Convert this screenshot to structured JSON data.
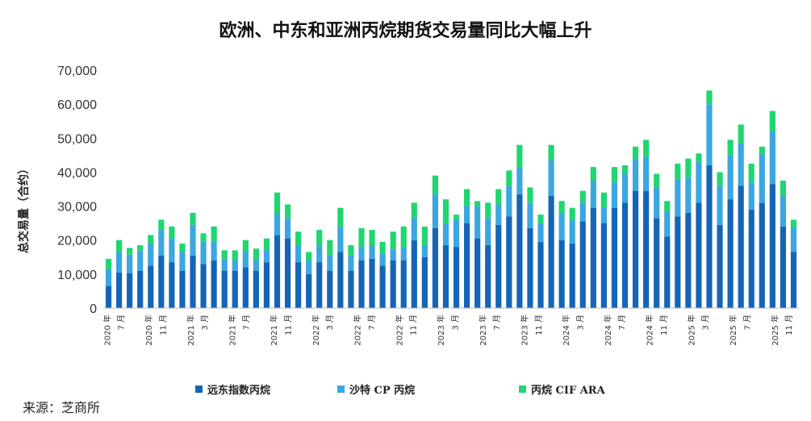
{
  "chart_data": {
    "type": "bar",
    "stacked": true,
    "title": "欧洲、中东和亚洲丙烷期货交易量同比大幅上升",
    "ylabel": "总交易量（合约）",
    "ylim": [
      0,
      70000
    ],
    "yticks": [
      "0",
      "10,000",
      "20,000",
      "30,000",
      "40,000",
      "50,000",
      "60,000",
      "70,000"
    ],
    "legend_position": "bottom",
    "grid": false,
    "x_tick_labels": [
      {
        "index": 0,
        "label": "2020 年"
      },
      {
        "index": 2,
        "label": "7 月"
      },
      {
        "index": 6,
        "label": "2020 年"
      },
      {
        "index": 8,
        "label": "11 月"
      },
      {
        "index": 12,
        "label": "2021 年"
      },
      {
        "index": 14,
        "label": "3 月"
      },
      {
        "index": 18,
        "label": "2021 年"
      },
      {
        "index": 20,
        "label": "7 月"
      },
      {
        "index": 24,
        "label": "2021 年"
      },
      {
        "index": 26,
        "label": "11 月"
      },
      {
        "index": 30,
        "label": "2022 年"
      },
      {
        "index": 32,
        "label": "3 月"
      },
      {
        "index": 36,
        "label": "2022 年"
      },
      {
        "index": 38,
        "label": "7 月"
      },
      {
        "index": 42,
        "label": "2022 年"
      },
      {
        "index": 44,
        "label": "11 月"
      },
      {
        "index": 48,
        "label": "2023 年"
      },
      {
        "index": 50,
        "label": "3 月"
      },
      {
        "index": 54,
        "label": "2023 年"
      },
      {
        "index": 56,
        "label": "7 月"
      },
      {
        "index": 60,
        "label": "2023 年"
      },
      {
        "index": 62,
        "label": "11 月"
      },
      {
        "index": 66,
        "label": "2024 年"
      },
      {
        "index": 68,
        "label": "3 月"
      },
      {
        "index": 72,
        "label": "2024 年"
      },
      {
        "index": 74,
        "label": "7 月"
      },
      {
        "index": 78,
        "label": "2024 年"
      },
      {
        "index": 80,
        "label": "11 月"
      },
      {
        "index": 84,
        "label": "2025 年"
      },
      {
        "index": 86,
        "label": "3 月"
      },
      {
        "index": 90,
        "label": "2025 年"
      },
      {
        "index": 92,
        "label": "7 月"
      },
      {
        "index": 96,
        "label": "2025 年"
      },
      {
        "index": 98,
        "label": "11 月"
      }
    ],
    "series": [
      {
        "name": "远东指数丙烷",
        "color": "#1565b6",
        "values": [
          6500,
          10500,
          10200,
          11000,
          12500,
          15500,
          13500,
          11000,
          15500,
          13000,
          14000,
          11000,
          11000,
          12000,
          11000,
          13500,
          21500,
          20500,
          13500,
          10000,
          13500,
          11000,
          16500,
          11000,
          14000,
          14500,
          12500,
          14000,
          14000,
          20000,
          15000,
          23500,
          18500,
          18000,
          25000,
          20500,
          18500,
          24500,
          27000,
          33500,
          23500,
          19500,
          33000,
          20000,
          19000,
          25500,
          29500,
          25000,
          29500,
          31000,
          34500,
          34500,
          26500,
          21000,
          27000,
          28000,
          31000,
          42000,
          24500,
          32000,
          36000,
          29000,
          31000,
          36500,
          24000,
          16500
        ]
      },
      {
        "name": "沙特 CP 丙烷",
        "color": "#3ba7e0",
        "values": [
          5000,
          6000,
          5500,
          6000,
          6500,
          7500,
          7000,
          5500,
          9000,
          6500,
          5500,
          3500,
          3000,
          4500,
          3500,
          3500,
          6500,
          6000,
          5000,
          4000,
          5000,
          4500,
          7500,
          4500,
          4000,
          4000,
          3500,
          3500,
          4000,
          6500,
          3500,
          10000,
          6500,
          8000,
          5000,
          9500,
          8000,
          6000,
          9000,
          8000,
          7500,
          5500,
          10500,
          8000,
          7000,
          5500,
          8000,
          4500,
          7500,
          8500,
          9500,
          10000,
          9000,
          7500,
          11000,
          10500,
          12000,
          18000,
          11500,
          13000,
          12500,
          8000,
          14500,
          15500,
          9000,
          7000
        ]
      },
      {
        "name": "丙烷 CIF ARA",
        "color": "#1fd670",
        "values": [
          3000,
          3500,
          2000,
          1500,
          2500,
          3000,
          3500,
          2500,
          3500,
          2500,
          4500,
          2500,
          3000,
          3500,
          3000,
          3500,
          6000,
          4000,
          4000,
          2500,
          4500,
          4500,
          5500,
          3000,
          5500,
          4500,
          3500,
          5000,
          6000,
          4500,
          5500,
          5500,
          7000,
          1500,
          5000,
          1500,
          4500,
          4500,
          4500,
          6500,
          4500,
          2500,
          4500,
          3500,
          3500,
          3500,
          4000,
          4500,
          4500,
          2500,
          3500,
          5000,
          4000,
          3000,
          4500,
          5500,
          2500,
          4000,
          4000,
          4500,
          5500,
          5500,
          2000,
          6000,
          4500,
          2500
        ]
      }
    ]
  },
  "legend": [
    {
      "label": "远东指数丙烷",
      "color": "#1565b6"
    },
    {
      "label": "沙特 CP 丙烷",
      "color": "#3ba7e0"
    },
    {
      "label": "丙烷 CIF ARA",
      "color": "#1fd670"
    }
  ],
  "source": "来源：芝商所"
}
